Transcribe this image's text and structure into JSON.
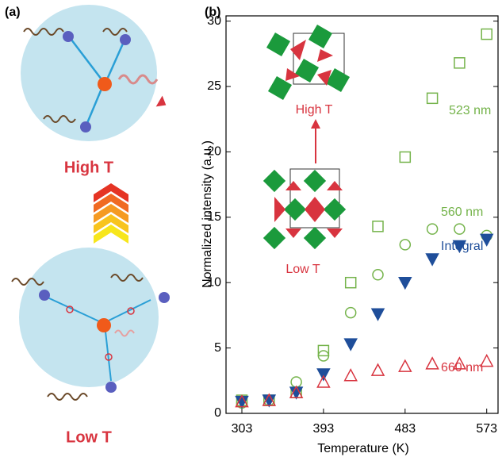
{
  "diagram": {
    "label": "(a)",
    "high": "High T",
    "low": "Low T"
  },
  "chart_data": {
    "type": "scatter",
    "label": "(b)",
    "x_label": "Temperature (K)",
    "y_label": "Normalized intensity (a.u.)",
    "annotations": [
      "High T",
      "Low T"
    ],
    "x": [
      303,
      333,
      363,
      393,
      423,
      453,
      483,
      513,
      543,
      573
    ],
    "xlim": [
      285.5,
      585.5
    ],
    "xticks": [
      303,
      393,
      483,
      573
    ],
    "ylim": [
      0,
      30.4
    ],
    "yticks": [
      0,
      5,
      10,
      15,
      20,
      25,
      30
    ],
    "series": [
      {
        "name": "523 nm",
        "color": "#74b34a",
        "marker": "square",
        "filled": false,
        "values": [
          1.0,
          1.0,
          1.6,
          4.8,
          10.0,
          14.3,
          19.6,
          24.1,
          26.8,
          29.0
        ]
      },
      {
        "name": "560 nm",
        "color": "#74b34a",
        "marker": "circle",
        "filled": false,
        "values": [
          0.8,
          1.0,
          2.4,
          4.4,
          7.7,
          10.6,
          12.9,
          14.1,
          14.1,
          13.6
        ]
      },
      {
        "name": "Integral",
        "color": "#1f4e9a",
        "marker": "triangle-down",
        "filled": true,
        "values": [
          0.9,
          1.0,
          1.6,
          3.0,
          5.3,
          7.6,
          10.0,
          11.8,
          12.8,
          13.3
        ]
      },
      {
        "name": "660 nm",
        "color": "#d8343f",
        "marker": "triangle-up",
        "filled": false,
        "values": [
          0.9,
          1.0,
          1.6,
          2.4,
          2.9,
          3.3,
          3.6,
          3.8,
          3.8,
          4.0
        ]
      }
    ]
  }
}
